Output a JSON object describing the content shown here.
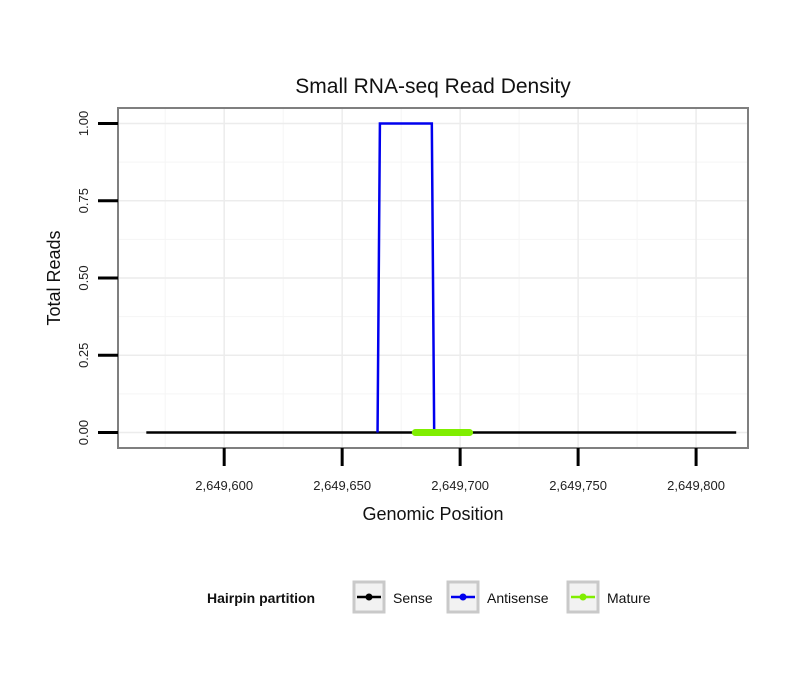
{
  "chart_data": {
    "type": "line",
    "title": "Small RNA-seq Read Density",
    "xlabel": "Genomic Position",
    "ylabel": "Total Reads",
    "xlim": [
      2649555,
      2649822
    ],
    "ylim": [
      -0.05,
      1.05
    ],
    "x_ticks": [
      2649600,
      2649650,
      2649700,
      2649750,
      2649800
    ],
    "x_tick_labels": [
      "2,649,600",
      "2,649,650",
      "2,649,700",
      "2,649,750",
      "2,649,800"
    ],
    "y_ticks": [
      0,
      0.25,
      0.5,
      0.75,
      1.0
    ],
    "y_tick_labels": [
      "0.00",
      "0.25",
      "0.50",
      "0.75",
      "1.00"
    ],
    "grid": true,
    "legend_position": "bottom",
    "legend_title": "Hairpin partition",
    "series": [
      {
        "name": "Sense",
        "color": "#000000",
        "x": [
          2649567,
          2649817
        ],
        "y": [
          0,
          0
        ]
      },
      {
        "name": "Antisense",
        "color": "#0000ee",
        "x": [
          2649665,
          2649666,
          2649688,
          2649689
        ],
        "y": [
          0,
          1,
          1,
          0
        ]
      },
      {
        "name": "Mature",
        "color": "#80ee00",
        "x": [
          2649681,
          2649704
        ],
        "y": [
          0,
          0
        ]
      }
    ]
  }
}
